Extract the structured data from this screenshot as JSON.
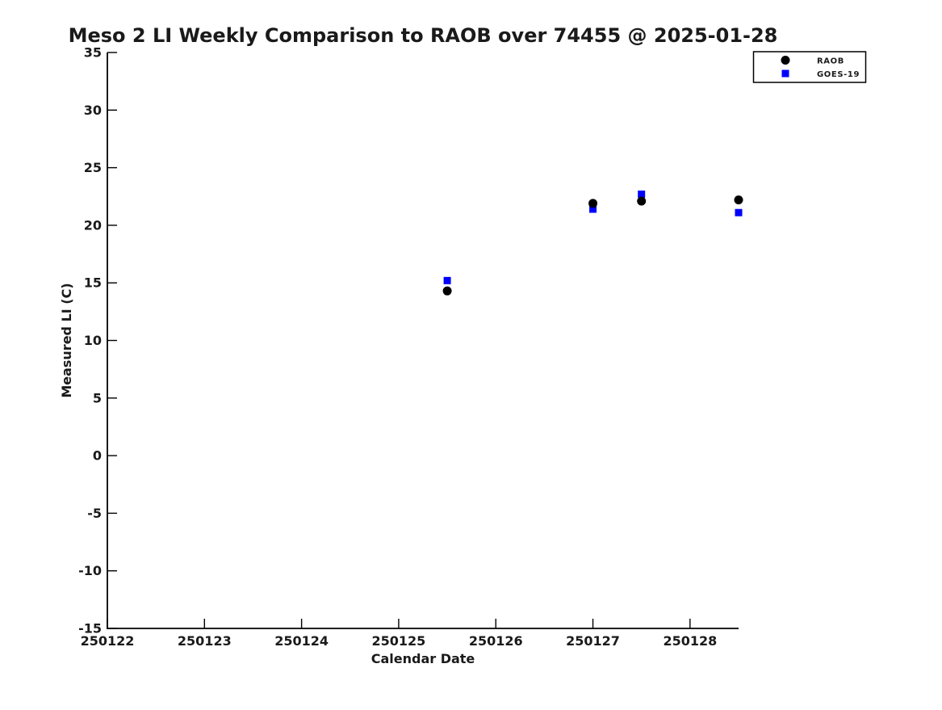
{
  "chart_data": {
    "type": "scatter",
    "title": "Meso 2 LI Weekly Comparison to RAOB over 74455 @ 2025-01-28",
    "xlabel": "Calendar Date",
    "ylabel": "Measured LI (C)",
    "xlim": [
      250122,
      250128.5
    ],
    "ylim": [
      -15,
      35
    ],
    "xticks": [
      250122,
      250123,
      250124,
      250125,
      250126,
      250127,
      250128
    ],
    "yticks": [
      -15,
      -10,
      -5,
      0,
      5,
      10,
      15,
      20,
      25,
      30,
      35
    ],
    "grid": false,
    "legend_position": "top-right outside axes",
    "series": [
      {
        "name": "RAOB",
        "marker": "circle",
        "color": "#000000",
        "x": [
          250125.5,
          250127.0,
          250127.5,
          250128.5
        ],
        "y": [
          14.3,
          21.9,
          22.1,
          22.2
        ]
      },
      {
        "name": "GOES-19",
        "marker": "square",
        "color": "#0000ff",
        "x": [
          250125.5,
          250127.0,
          250127.5,
          250128.5
        ],
        "y": [
          15.2,
          21.4,
          22.7,
          21.1
        ]
      }
    ],
    "colors": {
      "axis": "#000000",
      "background": "#ffffff",
      "raob": "#000000",
      "goes19": "#0000ff"
    }
  }
}
